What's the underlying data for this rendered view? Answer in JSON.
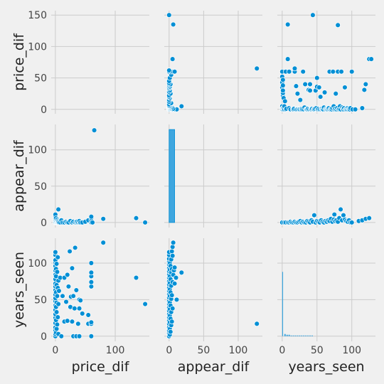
{
  "chart_data": {
    "type": "pairplot",
    "variables": [
      "price_dif",
      "appear_dif",
      "years_seen"
    ],
    "axis_labels": {
      "price_dif": "price_dif",
      "appear_dif": "appear_dif",
      "years_seen": "years_seen"
    },
    "limits": {
      "price_dif": [
        -7,
        157
      ],
      "appear_dif": [
        -7,
        135
      ],
      "years_seen": [
        -7,
        134
      ]
    },
    "ticks": {
      "price_dif": [
        0,
        100
      ],
      "price_dif_y": [
        0,
        50,
        100,
        150
      ],
      "appear_dif": [
        0,
        50,
        100
      ],
      "years_seen": [
        0,
        50,
        100
      ]
    },
    "grid": true,
    "colors": {
      "point": "#008fd5",
      "edge": "#ffffff",
      "background": "#f0f0f0",
      "grid": "#cbcbcb"
    },
    "price_appear_points": [
      [
        0,
        0
      ],
      [
        0,
        2
      ],
      [
        0,
        5
      ],
      [
        0,
        8
      ],
      [
        0,
        11
      ],
      [
        0,
        0
      ],
      [
        1,
        0
      ],
      [
        1,
        3
      ],
      [
        1,
        6
      ],
      [
        2,
        0
      ],
      [
        2,
        1
      ],
      [
        3,
        0
      ],
      [
        3,
        4
      ],
      [
        4,
        0
      ],
      [
        4,
        2
      ],
      [
        5,
        18
      ],
      [
        5,
        0
      ],
      [
        5,
        1
      ],
      [
        6,
        0
      ],
      [
        8,
        0
      ],
      [
        10,
        3
      ],
      [
        12,
        0
      ],
      [
        15,
        0
      ],
      [
        18,
        1
      ],
      [
        20,
        0
      ],
      [
        22,
        0
      ],
      [
        25,
        2
      ],
      [
        28,
        0
      ],
      [
        30,
        1
      ],
      [
        33,
        0
      ],
      [
        35,
        0
      ],
      [
        36,
        1
      ],
      [
        38,
        0
      ],
      [
        40,
        0
      ],
      [
        40,
        2
      ],
      [
        42,
        0
      ],
      [
        45,
        0
      ],
      [
        50,
        1
      ],
      [
        55,
        3
      ],
      [
        60,
        0
      ],
      [
        60,
        3
      ],
      [
        60,
        6
      ],
      [
        60,
        8
      ],
      [
        62,
        0
      ],
      [
        65,
        127
      ],
      [
        80,
        5
      ],
      [
        135,
        6
      ],
      [
        150,
        0
      ]
    ],
    "price_years_points": [
      [
        0,
        0
      ],
      [
        0,
        3
      ],
      [
        0,
        8
      ],
      [
        0,
        12
      ],
      [
        0,
        18
      ],
      [
        0,
        25
      ],
      [
        0,
        30
      ],
      [
        0,
        36
      ],
      [
        0,
        42
      ],
      [
        0,
        48
      ],
      [
        0,
        52
      ],
      [
        0,
        57
      ],
      [
        0,
        63
      ],
      [
        0,
        68
      ],
      [
        0,
        72
      ],
      [
        0,
        78
      ],
      [
        0,
        84
      ],
      [
        0,
        90
      ],
      [
        0,
        96
      ],
      [
        0,
        101
      ],
      [
        0,
        104
      ],
      [
        0,
        111
      ],
      [
        0,
        115
      ],
      [
        1,
        5
      ],
      [
        1,
        22
      ],
      [
        1,
        40
      ],
      [
        1,
        60
      ],
      [
        1,
        82
      ],
      [
        1,
        92
      ],
      [
        2,
        10
      ],
      [
        2,
        33
      ],
      [
        2,
        46
      ],
      [
        2,
        70
      ],
      [
        2,
        99
      ],
      [
        3,
        16
      ],
      [
        3,
        55
      ],
      [
        3,
        88
      ],
      [
        4,
        26
      ],
      [
        4,
        66
      ],
      [
        4,
        108
      ],
      [
        5,
        3
      ],
      [
        5,
        44
      ],
      [
        5,
        76
      ],
      [
        6,
        62
      ],
      [
        8,
        80
      ],
      [
        10,
        0
      ],
      [
        12,
        55
      ],
      [
        15,
        20
      ],
      [
        15,
        80
      ],
      [
        18,
        47
      ],
      [
        20,
        21
      ],
      [
        20,
        84
      ],
      [
        22,
        68
      ],
      [
        24,
        116
      ],
      [
        25,
        40
      ],
      [
        26,
        54
      ],
      [
        28,
        20
      ],
      [
        28,
        93
      ],
      [
        30,
        0
      ],
      [
        30,
        55
      ],
      [
        32,
        38
      ],
      [
        33,
        121
      ],
      [
        35,
        0
      ],
      [
        35,
        63
      ],
      [
        38,
        17
      ],
      [
        40,
        38
      ],
      [
        40,
        50
      ],
      [
        40,
        0
      ],
      [
        42,
        49
      ],
      [
        45,
        31
      ],
      [
        55,
        17
      ],
      [
        55,
        29
      ],
      [
        60,
        0
      ],
      [
        60,
        17
      ],
      [
        60,
        19
      ],
      [
        60,
        68
      ],
      [
        60,
        74
      ],
      [
        60,
        82
      ],
      [
        60,
        87
      ],
      [
        60,
        100
      ],
      [
        80,
        128
      ],
      [
        135,
        80
      ],
      [
        150,
        44
      ]
    ],
    "appear_years_points": [
      [
        0,
        0
      ],
      [
        0,
        4
      ],
      [
        0,
        8
      ],
      [
        0,
        12
      ],
      [
        0,
        17
      ],
      [
        0,
        21
      ],
      [
        0,
        26
      ],
      [
        0,
        30
      ],
      [
        0,
        35
      ],
      [
        0,
        39
      ],
      [
        0,
        44
      ],
      [
        0,
        48
      ],
      [
        0,
        53
      ],
      [
        0,
        57
      ],
      [
        0,
        62
      ],
      [
        0,
        66
      ],
      [
        0,
        71
      ],
      [
        0,
        75
      ],
      [
        0,
        80
      ],
      [
        0,
        84
      ],
      [
        0,
        89
      ],
      [
        0,
        93
      ],
      [
        0,
        98
      ],
      [
        0,
        102
      ],
      [
        0,
        106
      ],
      [
        0,
        111
      ],
      [
        0,
        115
      ],
      [
        1,
        2
      ],
      [
        1,
        10
      ],
      [
        1,
        19
      ],
      [
        1,
        28
      ],
      [
        1,
        37
      ],
      [
        1,
        46
      ],
      [
        1,
        55
      ],
      [
        1,
        64
      ],
      [
        1,
        73
      ],
      [
        1,
        82
      ],
      [
        1,
        91
      ],
      [
        1,
        100
      ],
      [
        2,
        6
      ],
      [
        2,
        24
      ],
      [
        2,
        42
      ],
      [
        2,
        60
      ],
      [
        2,
        78
      ],
      [
        2,
        96
      ],
      [
        3,
        15
      ],
      [
        3,
        33
      ],
      [
        3,
        51
      ],
      [
        3,
        69
      ],
      [
        3,
        87
      ],
      [
        3,
        105
      ],
      [
        4,
        20
      ],
      [
        4,
        56
      ],
      [
        4,
        92
      ],
      [
        4,
        116
      ],
      [
        5,
        38
      ],
      [
        5,
        74
      ],
      [
        5,
        110
      ],
      [
        5,
        122
      ],
      [
        6,
        84
      ],
      [
        6,
        128
      ],
      [
        7,
        90
      ],
      [
        8,
        72
      ],
      [
        8,
        94
      ],
      [
        10,
        80
      ],
      [
        11,
        50
      ],
      [
        18,
        87
      ],
      [
        127,
        17
      ]
    ],
    "diagonal": {
      "price_dif_bars": [],
      "appear_dif_hist": {
        "bin_start": 0,
        "bin_end": 8,
        "height": 128
      },
      "years_seen_hist_tall": {
        "x": 0,
        "height": 88
      },
      "years_seen_hist_small": [
        {
          "x": 3,
          "h": 3
        },
        {
          "x": 6,
          "h": 2
        },
        {
          "x": 9,
          "h": 2
        },
        {
          "x": 12,
          "h": 1
        },
        {
          "x": 15,
          "h": 1
        },
        {
          "x": 18,
          "h": 1
        },
        {
          "x": 21,
          "h": 1
        },
        {
          "x": 24,
          "h": 1
        },
        {
          "x": 27,
          "h": 1
        },
        {
          "x": 30,
          "h": 1
        },
        {
          "x": 33,
          "h": 1
        },
        {
          "x": 36,
          "h": 1
        },
        {
          "x": 39,
          "h": 1
        },
        {
          "x": 42,
          "h": 1
        }
      ]
    },
    "price_years_scatter_top": [
      [
        0,
        0
      ],
      [
        0,
        5
      ],
      [
        0,
        35
      ],
      [
        0,
        43
      ],
      [
        0,
        52
      ],
      [
        0,
        60
      ],
      [
        1,
        0
      ],
      [
        1,
        2
      ],
      [
        1,
        22
      ],
      [
        1,
        26
      ],
      [
        1,
        30
      ],
      [
        1,
        38
      ],
      [
        1,
        47
      ],
      [
        2,
        2
      ],
      [
        2,
        18
      ],
      [
        3,
        0
      ],
      [
        3,
        5
      ],
      [
        4,
        13
      ],
      [
        5,
        0
      ],
      [
        5,
        60
      ],
      [
        6,
        1
      ],
      [
        8,
        135
      ],
      [
        8,
        80
      ],
      [
        10,
        2
      ],
      [
        10,
        60
      ],
      [
        12,
        0
      ],
      [
        15,
        0
      ],
      [
        16,
        0
      ],
      [
        17,
        1
      ],
      [
        18,
        60
      ],
      [
        18,
        65
      ],
      [
        20,
        0
      ],
      [
        20,
        37
      ],
      [
        20,
        0
      ],
      [
        22,
        1
      ],
      [
        22,
        25
      ],
      [
        22,
        0
      ],
      [
        24,
        0
      ],
      [
        25,
        0
      ],
      [
        26,
        15
      ],
      [
        27,
        0
      ],
      [
        28,
        1
      ],
      [
        29,
        0
      ],
      [
        30,
        60
      ],
      [
        31,
        0
      ],
      [
        32,
        3
      ],
      [
        33,
        40
      ],
      [
        34,
        0
      ],
      [
        35,
        0
      ],
      [
        36,
        0
      ],
      [
        37,
        1
      ],
      [
        38,
        31
      ],
      [
        39,
        0
      ],
      [
        40,
        30
      ],
      [
        40,
        40
      ],
      [
        41,
        0
      ],
      [
        42,
        0
      ],
      [
        43,
        1
      ],
      [
        44,
        150
      ],
      [
        45,
        0
      ],
      [
        46,
        0
      ],
      [
        47,
        1
      ],
      [
        48,
        30
      ],
      [
        49,
        2
      ],
      [
        50,
        50
      ],
      [
        50,
        36
      ],
      [
        51,
        0
      ],
      [
        52,
        1
      ],
      [
        53,
        35
      ],
      [
        54,
        0
      ],
      [
        55,
        20
      ],
      [
        56,
        0
      ],
      [
        57,
        1
      ],
      [
        58,
        0
      ],
      [
        59,
        0
      ],
      [
        60,
        3
      ],
      [
        61,
        27
      ],
      [
        62,
        0
      ],
      [
        63,
        1
      ],
      [
        64,
        0
      ],
      [
        65,
        0
      ],
      [
        66,
        1
      ],
      [
        67,
        2
      ],
      [
        68,
        60
      ],
      [
        69,
        0
      ],
      [
        70,
        1
      ],
      [
        71,
        0
      ],
      [
        72,
        2
      ],
      [
        73,
        60
      ],
      [
        74,
        5
      ],
      [
        75,
        0
      ],
      [
        76,
        1
      ],
      [
        77,
        25
      ],
      [
        78,
        0
      ],
      [
        79,
        2
      ],
      [
        80,
        60
      ],
      [
        80,
        134
      ],
      [
        81,
        0
      ],
      [
        82,
        1
      ],
      [
        83,
        5
      ],
      [
        84,
        0
      ],
      [
        85,
        60
      ],
      [
        86,
        3
      ],
      [
        87,
        1
      ],
      [
        88,
        0
      ],
      [
        89,
        2
      ],
      [
        90,
        35
      ],
      [
        91,
        0
      ],
      [
        92,
        1
      ],
      [
        93,
        0
      ],
      [
        94,
        2
      ],
      [
        95,
        0
      ],
      [
        96,
        1
      ],
      [
        97,
        0
      ],
      [
        98,
        2
      ],
      [
        100,
        60
      ],
      [
        101,
        0
      ],
      [
        105,
        0
      ],
      [
        115,
        2
      ],
      [
        118,
        31
      ],
      [
        120,
        40
      ],
      [
        125,
        80
      ],
      [
        128,
        80
      ]
    ],
    "appear_years_scatter_right": [
      [
        0,
        0
      ],
      [
        3,
        0
      ],
      [
        5,
        0
      ],
      [
        8,
        0
      ],
      [
        10,
        0
      ],
      [
        12,
        1
      ],
      [
        14,
        0
      ],
      [
        16,
        0
      ],
      [
        18,
        1
      ],
      [
        20,
        0
      ],
      [
        22,
        0
      ],
      [
        24,
        1
      ],
      [
        26,
        2
      ],
      [
        28,
        0
      ],
      [
        30,
        1
      ],
      [
        32,
        0
      ],
      [
        34,
        0
      ],
      [
        36,
        2
      ],
      [
        38,
        1
      ],
      [
        40,
        0
      ],
      [
        42,
        3
      ],
      [
        44,
        1
      ],
      [
        46,
        10
      ],
      [
        48,
        0
      ],
      [
        50,
        2
      ],
      [
        52,
        1
      ],
      [
        54,
        0
      ],
      [
        56,
        3
      ],
      [
        58,
        1
      ],
      [
        60,
        0
      ],
      [
        62,
        2
      ],
      [
        64,
        1
      ],
      [
        66,
        3
      ],
      [
        68,
        2
      ],
      [
        70,
        5
      ],
      [
        72,
        1
      ],
      [
        74,
        4
      ],
      [
        75,
        11
      ],
      [
        76,
        2
      ],
      [
        78,
        3
      ],
      [
        80,
        1
      ],
      [
        82,
        6
      ],
      [
        84,
        18
      ],
      [
        86,
        3
      ],
      [
        88,
        10
      ],
      [
        90,
        4
      ],
      [
        92,
        2
      ],
      [
        94,
        1
      ],
      [
        96,
        3
      ],
      [
        98,
        0
      ],
      [
        100,
        0
      ],
      [
        110,
        2
      ],
      [
        115,
        3
      ],
      [
        120,
        5
      ],
      [
        125,
        6
      ]
    ]
  }
}
